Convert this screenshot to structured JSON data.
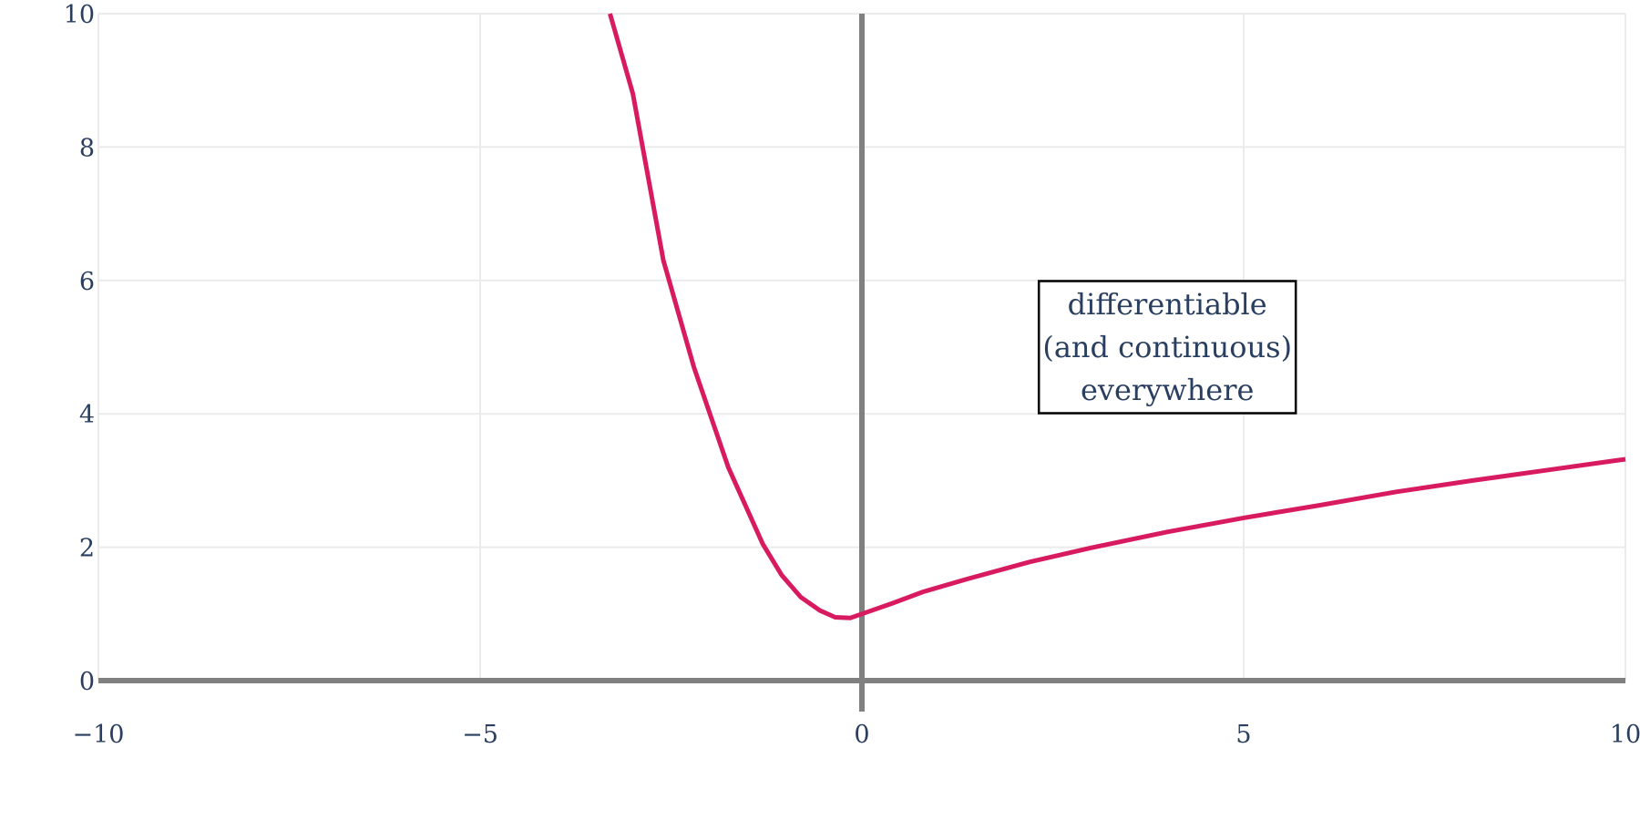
{
  "chart_data": {
    "type": "line",
    "title": "",
    "xlabel": "",
    "ylabel": "",
    "xlim": [
      -10,
      10
    ],
    "ylim": [
      0,
      10
    ],
    "x_ticks": [
      -10,
      -5,
      0,
      5,
      10
    ],
    "x_tick_labels": [
      "−10",
      "−5",
      "0",
      "5",
      "10"
    ],
    "y_ticks": [
      0,
      2,
      4,
      6,
      8,
      10
    ],
    "y_tick_labels": [
      "0",
      "2",
      "4",
      "6",
      "8",
      "10"
    ],
    "grid": true,
    "zero_lines": true,
    "series": [
      {
        "color": "#d81b60",
        "x": [
          -3.3,
          -3.0,
          -2.6,
          -2.2,
          -1.75,
          -1.3,
          -1.05,
          -0.8,
          -0.55,
          -0.35,
          -0.15,
          0.0,
          0.4,
          0.8,
          1.4,
          2.2,
          3.0,
          4.0,
          5.0,
          6.0,
          7.0,
          8.0,
          9.0,
          10.0
        ],
        "y": [
          10.0,
          8.8,
          6.3,
          4.7,
          3.2,
          2.05,
          1.58,
          1.25,
          1.05,
          0.95,
          0.94,
          1.0,
          1.16,
          1.33,
          1.53,
          1.78,
          1.99,
          2.23,
          2.44,
          2.63,
          2.83,
          3.0,
          3.16,
          3.32
        ]
      }
    ],
    "annotations": [
      {
        "lines": [
          "differentiable",
          "(and continuous)",
          "everywhere"
        ],
        "x": 4.0,
        "y": 5.0
      }
    ]
  }
}
